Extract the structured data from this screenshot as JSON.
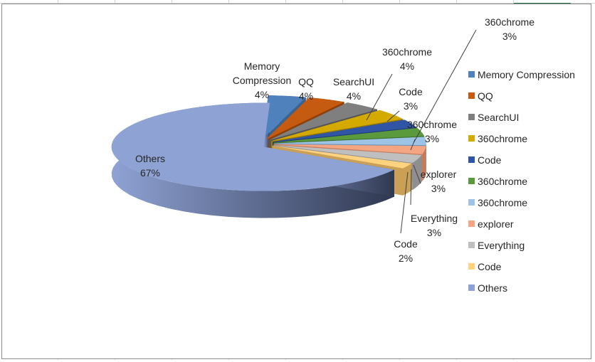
{
  "chart_data": {
    "type": "pie",
    "style": "3d-exploded",
    "slices": [
      {
        "category": "Memory Compression",
        "value": 4,
        "label": "4%",
        "color": "#4f81bd",
        "side": "#3a6490"
      },
      {
        "category": "QQ",
        "value": 4,
        "label": "4%",
        "color": "#c55a11",
        "side": "#913f08"
      },
      {
        "category": "SearchUI",
        "value": 4,
        "label": "4%",
        "color": "#7f7f7f",
        "side": "#555555"
      },
      {
        "category": "360chrome",
        "value": 4,
        "label": "4%",
        "color": "#d4a900",
        "side": "#9a7b00"
      },
      {
        "category": "Code",
        "value": 3,
        "label": "3%",
        "color": "#2f55a4",
        "side": "#1f3a75"
      },
      {
        "category": "360chrome",
        "value": 3,
        "label": "3%",
        "color": "#5a9a3c",
        "side": "#3e7028"
      },
      {
        "category": "360chrome",
        "value": 3,
        "label": "3%",
        "color": "#9dc3e6",
        "side": "#6d94b8"
      },
      {
        "category": "explorer",
        "value": 3,
        "label": "3%",
        "color": "#f4a582",
        "side": "#c47a5b"
      },
      {
        "category": "Everything",
        "value": 3,
        "label": "3%",
        "color": "#bfbfbf",
        "side": "#8f8f8f"
      },
      {
        "category": "Code",
        "value": 2,
        "label": "2%",
        "color": "#ffd280",
        "side": "#c9a055"
      },
      {
        "category": "Others",
        "value": 67,
        "label": "67%",
        "color": "#8fa2d4",
        "side": "#3f4b6e"
      }
    ],
    "legend_position": "right"
  }
}
